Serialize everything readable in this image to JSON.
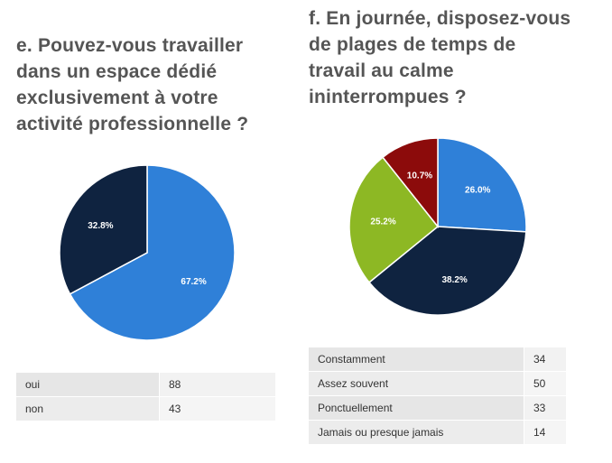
{
  "colors": {
    "blue": "#2f80d8",
    "navy": "#0f2340",
    "green": "#8db824",
    "darkred": "#8c0b0b",
    "question_text": "#555555"
  },
  "chart_data": [
    {
      "type": "pie",
      "title": "e. Pouvez-vous travailler dans un espace dédié exclusivement à votre activité professionnelle ?",
      "categories": [
        "oui",
        "non"
      ],
      "values": [
        88,
        43
      ],
      "slice_labels": [
        "67.2%",
        "32.8%"
      ],
      "colors": [
        "#2f80d8",
        "#0f2340"
      ],
      "legend": "none"
    },
    {
      "type": "pie",
      "title": "f. En journée, disposez-vous de plages de temps de travail au calme ininterrompues ?",
      "categories": [
        "Constamment",
        "Assez souvent",
        "Ponctuellement",
        "Jamais ou presque jamais"
      ],
      "values": [
        34,
        50,
        33,
        14
      ],
      "slice_labels": [
        "26.0%",
        "38.2%",
        "25.2%",
        "10.7%"
      ],
      "colors": [
        "#2f80d8",
        "#0f2340",
        "#8db824",
        "#8c0b0b"
      ],
      "legend": "none"
    }
  ]
}
